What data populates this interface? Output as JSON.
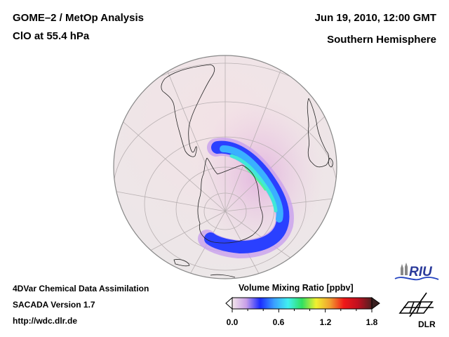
{
  "header": {
    "title_left_1": "GOME–2 / MetOp Analysis",
    "title_left_2": "ClO at 55.4 hPa",
    "title_right_1": "Jun 19, 2010, 12:00 GMT",
    "title_right_2": "Southern Hemisphere"
  },
  "footer": {
    "line1": "4DVar Chemical Data Assimilation",
    "line2": "SACADA Version 1.7",
    "line3": "http://wdc.dlr.de"
  },
  "colorbar": {
    "title": "Volume Mixing Ratio [ppbv]",
    "ticks": [
      "0.0",
      "0.6",
      "1.2",
      "1.8"
    ],
    "range": [
      0.0,
      1.8
    ],
    "colors": [
      "#f3e6ea",
      "#c9a0e8",
      "#1a2bff",
      "#3aa0ff",
      "#40f0f0",
      "#30e060",
      "#f0f030",
      "#f0a030",
      "#f01818",
      "#c01020",
      "#502020"
    ]
  },
  "map": {
    "projection": "orthographic",
    "hemisphere": "south",
    "ocean_color": "#efe4e6",
    "outline_color": "#888888"
  },
  "logos": {
    "riu": "RIU",
    "dlr": "DLR"
  }
}
